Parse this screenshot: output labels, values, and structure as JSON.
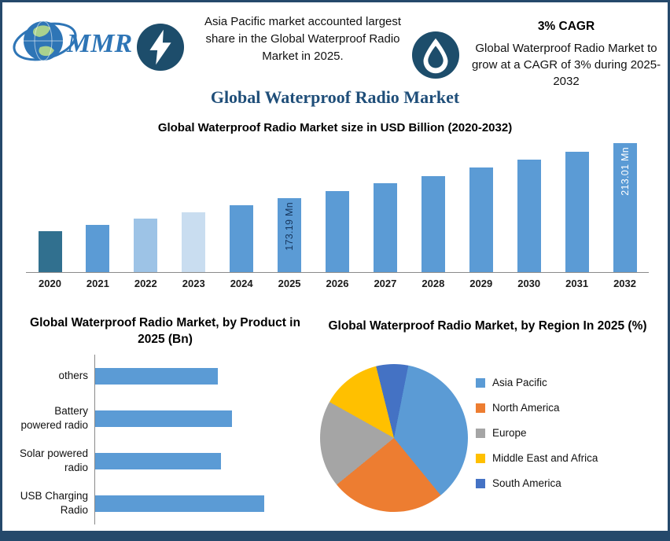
{
  "header": {
    "logo_text": "MMR",
    "center_note": "Asia Pacific market accounted largest share in the Global Waterproof Radio Market in 2025.",
    "cagr_title": "3% CAGR",
    "cagr_note": "Global Waterproof Radio Market to grow at a CAGR of 3% during 2025-2032",
    "main_title": "Global Waterproof Radio Market"
  },
  "colors": {
    "border": "#25496B",
    "icon_circle": "#1D4D6B",
    "title_blue": "#1F4E79",
    "bar_primary": "#5B9BD5"
  },
  "chart_data": [
    {
      "type": "bar",
      "title": "Global Waterproof Radio Market size in USD Billion (2020-2032)",
      "categories": [
        "2020",
        "2021",
        "2022",
        "2023",
        "2024",
        "2025",
        "2026",
        "2027",
        "2028",
        "2029",
        "2030",
        "2031",
        "2032"
      ],
      "values": [
        149.39,
        153.87,
        158.49,
        163.24,
        168.15,
        173.19,
        178.39,
        183.74,
        189.25,
        194.93,
        200.77,
        206.8,
        213.01
      ],
      "ylim": [
        120,
        215
      ],
      "bar_labels": [
        null,
        null,
        null,
        null,
        null,
        "173.19 Mn",
        null,
        null,
        null,
        null,
        null,
        null,
        "213.01 Mn"
      ],
      "bar_label_colors": [
        null,
        null,
        null,
        null,
        null,
        "#17375E",
        null,
        null,
        null,
        null,
        null,
        null,
        "#FFFFFF"
      ],
      "bar_colors": [
        "#31708F",
        "#5B9BD5",
        "#9DC3E6",
        "#C9DDF0",
        "#5B9BD5",
        "#5B9BD5",
        "#5B9BD5",
        "#5B9BD5",
        "#5B9BD5",
        "#5B9BD5",
        "#5B9BD5",
        "#5B9BD5",
        "#5B9BD5"
      ],
      "grid": false,
      "legend": "none"
    },
    {
      "type": "bar-horizontal",
      "title": "Global Waterproof Radio Market, by Product in 2025 (Bn)",
      "categories": [
        "others",
        "Battery powered radio",
        "Solar powered radio",
        "USB Charging Radio"
      ],
      "values": [
        45,
        50,
        46,
        62
      ],
      "xlim": [
        0,
        80
      ],
      "bar_color": "#5B9BD5",
      "grid": false,
      "legend": "none"
    },
    {
      "type": "pie",
      "title": "Global Waterproof Radio Market, by Region In 2025 (%)",
      "slices": [
        {
          "label": "Asia Pacific",
          "value": 36,
          "color": "#5B9BD5"
        },
        {
          "label": "North America",
          "value": 25,
          "color": "#ED7D31"
        },
        {
          "label": "Europe",
          "value": 19,
          "color": "#A5A5A5"
        },
        {
          "label": "Middle East and Africa",
          "value": 13,
          "color": "#FFC000"
        },
        {
          "label": "South America",
          "value": 7,
          "color": "#4472C4"
        }
      ],
      "start_angle_deg": -14,
      "draw_order": [
        4,
        0,
        1,
        2,
        3
      ],
      "legend_position": "right"
    }
  ]
}
